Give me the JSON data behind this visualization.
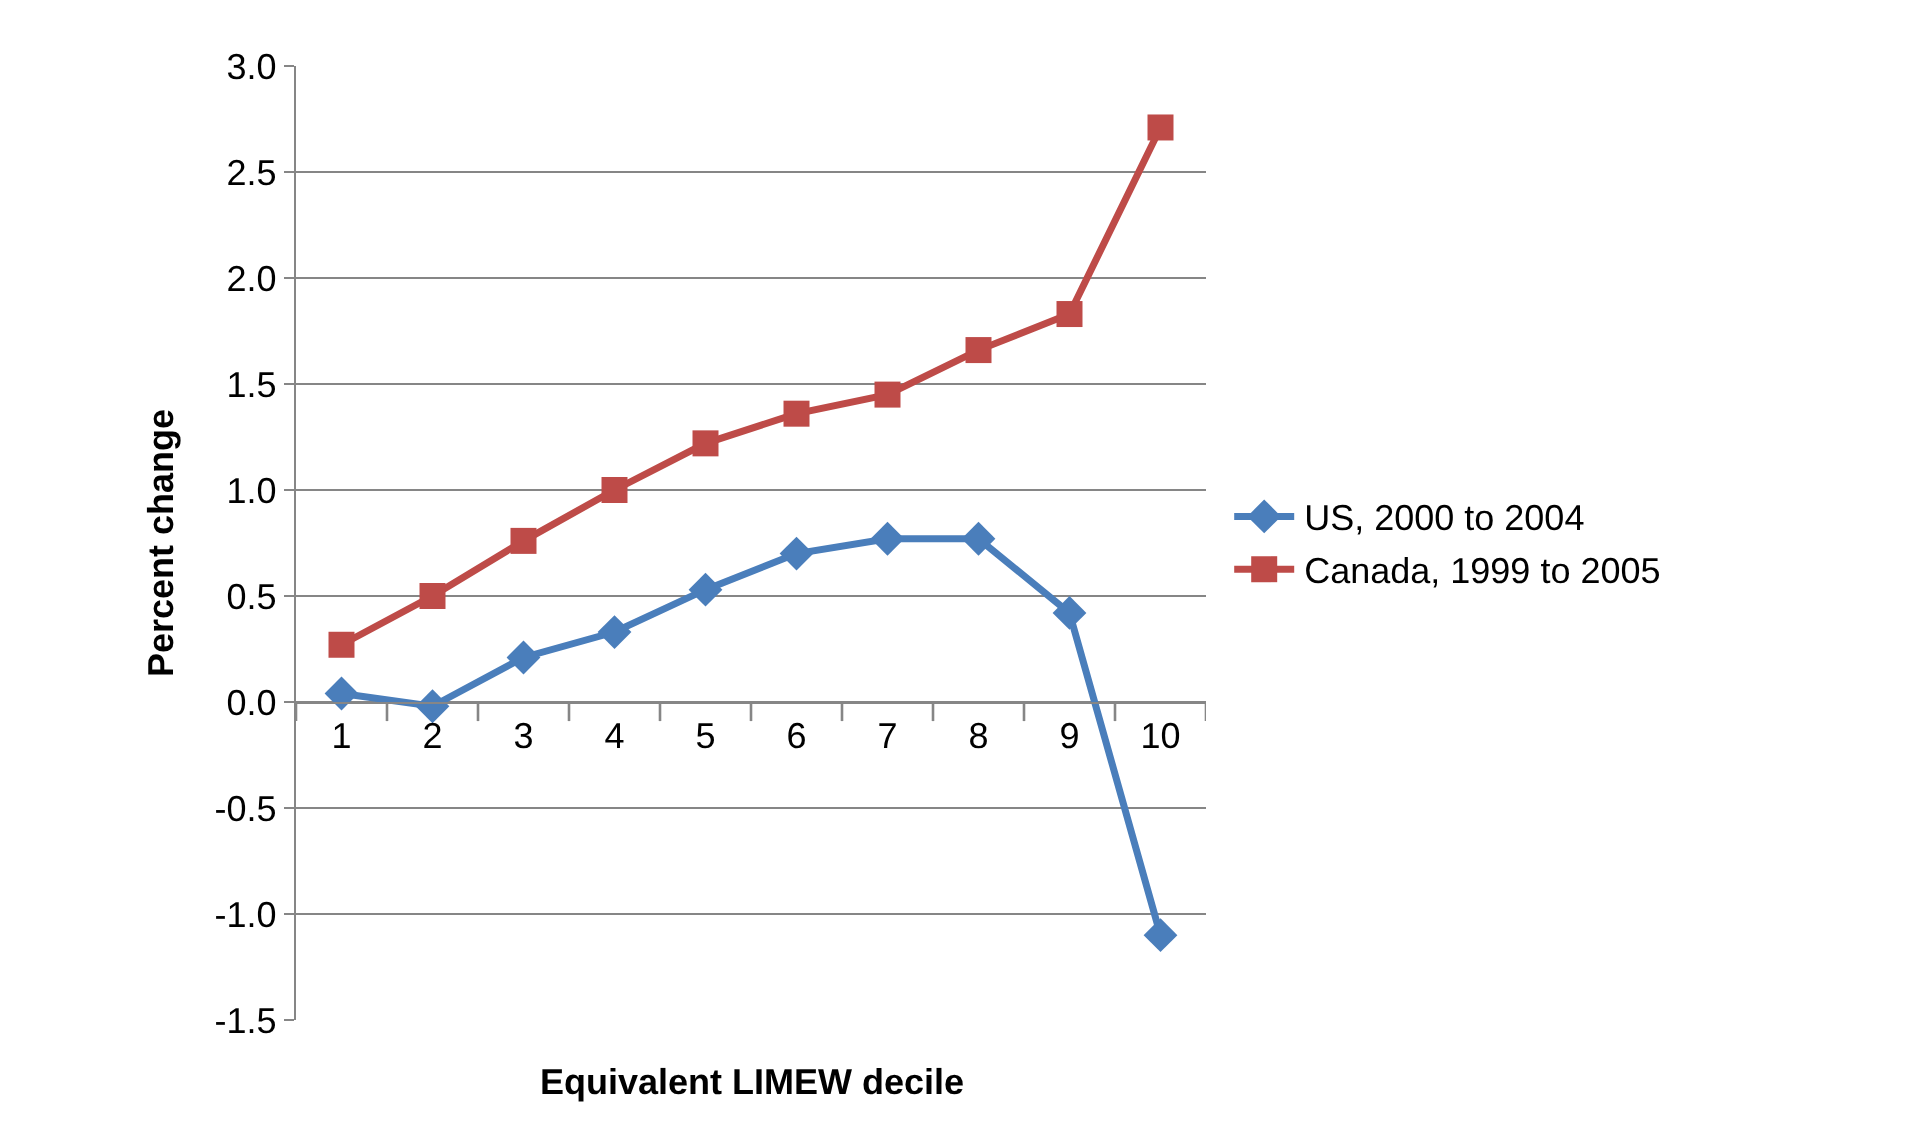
{
  "chart_data": {
    "type": "line",
    "xlabel": "Equivalent LIMEW decile",
    "ylabel": "Percent change",
    "categories": [
      "1",
      "2",
      "3",
      "4",
      "5",
      "6",
      "7",
      "8",
      "9",
      "10"
    ],
    "series": [
      {
        "name": "US, 2000 to 2004",
        "color": "#4a7ebb",
        "marker": "diamond",
        "values": [
          0.04,
          -0.02,
          0.21,
          0.33,
          0.53,
          0.7,
          0.77,
          0.77,
          0.42,
          -1.1
        ]
      },
      {
        "name": "Canada, 1999 to 2005",
        "color": "#be4b48",
        "marker": "square",
        "values": [
          0.27,
          0.5,
          0.76,
          1.0,
          1.22,
          1.36,
          1.45,
          1.66,
          1.83,
          2.71
        ]
      }
    ],
    "ylim": [
      -1.5,
      3.0
    ],
    "yticks": [
      {
        "value": -1.5,
        "label": "-1.5"
      },
      {
        "value": -1.0,
        "label": "-1.0"
      },
      {
        "value": -0.5,
        "label": "-0.5"
      },
      {
        "value": 0,
        "label": "0.0"
      },
      {
        "value": 0.5,
        "label": "0.5"
      },
      {
        "value": 1.0,
        "label": "1.0"
      },
      {
        "value": 1.5,
        "label": "1.5"
      },
      {
        "value": 2.0,
        "label": "2.0"
      },
      {
        "value": 2.5,
        "label": "2.5"
      },
      {
        "value": 3.0,
        "label": "3.0"
      }
    ],
    "grid": "y",
    "legend": "right",
    "line_style": "solid"
  }
}
